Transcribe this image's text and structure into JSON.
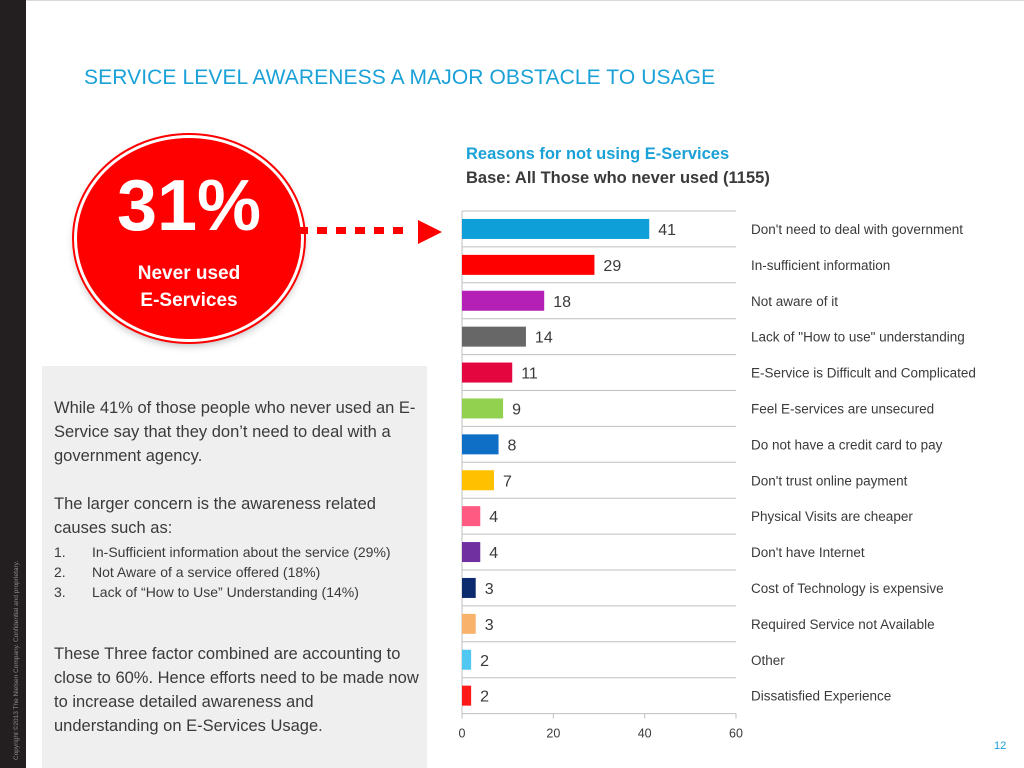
{
  "slide": {
    "title": "SERVICE LEVEL AWARENESS A MAJOR OBSTACLE TO USAGE",
    "copyright": "Copyright ©2013 The Nielsen Company. Confidential and proprietary.",
    "page_number": "12"
  },
  "callout": {
    "percent": "31%",
    "label_line1": "Never used",
    "label_line2": "E-Services",
    "color": "#ff0000"
  },
  "panel": {
    "para1": "While 41% of those people who never used an E-Service say that they don’t need to deal with a government agency.",
    "para2": "The larger concern is the awareness related causes such as:",
    "list": [
      {
        "num": "1.",
        "text": "In-Sufficient information about the service (29%)"
      },
      {
        "num": "2.",
        "text": "Not Aware of a service offered (18%)"
      },
      {
        "num": "3.",
        "text": "Lack of “How to Use” Understanding (14%)"
      }
    ],
    "para3": "These Three factor combined are accounting to close to 60%. Hence efforts need to be made now to increase detailed awareness and understanding on E-Services Usage."
  },
  "chart_data": {
    "type": "bar",
    "orientation": "horizontal",
    "title": "Reasons for not using E-Services",
    "subtitle": "Base: All Those who never used (1155)",
    "categories": [
      "Don't need to deal with government",
      "In-sufficient information",
      "Not aware of it",
      "Lack of \"How to use\" understanding",
      "E-Service is Difficult and Complicated",
      "Feel E-services are unsecured",
      "Do not have a credit card to pay",
      "Don't trust online payment",
      "Physical Visits are cheaper",
      "Don't have Internet",
      "Cost of Technology is expensive",
      "Required Service not Available",
      "Other",
      "Dissatisfied Experience"
    ],
    "values": [
      41,
      29,
      18,
      14,
      11,
      9,
      8,
      7,
      4,
      4,
      3,
      3,
      2,
      2
    ],
    "colors": [
      "#0e9fd8",
      "#ff0000",
      "#b41fb5",
      "#676767",
      "#e3063f",
      "#92d050",
      "#0f6fc6",
      "#ffc000",
      "#ff5a82",
      "#7030a0",
      "#0c2a6e",
      "#f9b26b",
      "#51c8f2",
      "#ff1a1a"
    ],
    "xlim": [
      0,
      60
    ],
    "xticks": [
      0,
      20,
      40,
      60
    ],
    "grid": "horizontal row separators",
    "data_labels": true
  }
}
